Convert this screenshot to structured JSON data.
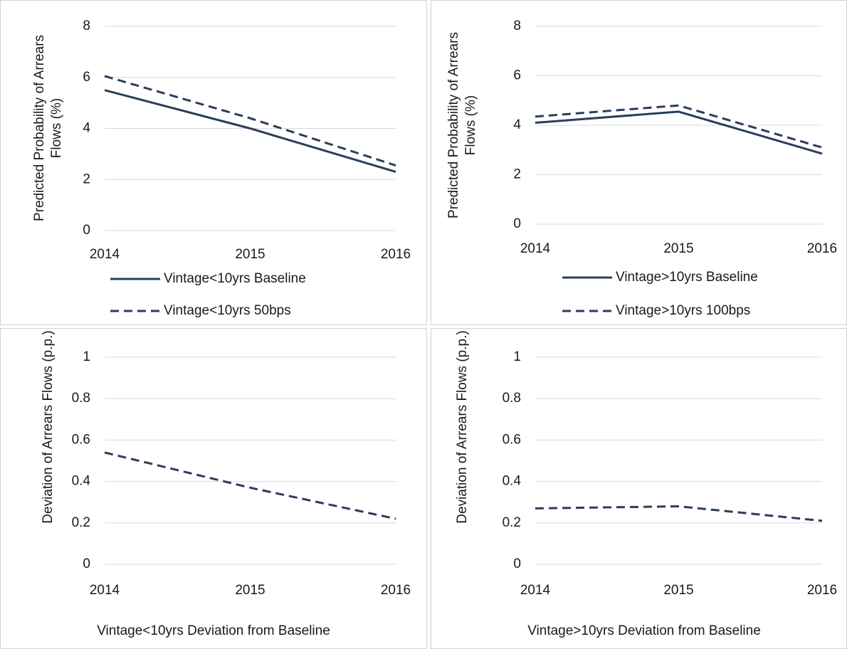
{
  "chart_data": [
    {
      "type": "line",
      "y_label": "Predicted Probability of Arrears Flows (%)",
      "categories": [
        "2014",
        "2015",
        "2016"
      ],
      "ylim": [
        0,
        8
      ],
      "yticks": [
        0,
        2,
        4,
        6,
        8
      ],
      "grid": true,
      "series": [
        {
          "name": "Vintage<10yrs Baseline",
          "color": "#2b3d5c",
          "dashed": false,
          "values": [
            5.5,
            4.0,
            2.3
          ]
        },
        {
          "name": "Vintage<10yrs 50bps",
          "color": "#2b3d5c",
          "dashed": true,
          "values": [
            6.05,
            4.4,
            2.55
          ]
        }
      ]
    },
    {
      "type": "line",
      "y_label": "Predicted Probability of Arrears Flows (%)",
      "categories": [
        "2014",
        "2015",
        "2016"
      ],
      "ylim": [
        0,
        8
      ],
      "yticks": [
        0,
        2,
        4,
        6,
        8
      ],
      "grid": true,
      "series": [
        {
          "name": "Vintage>10yrs Baseline",
          "color": "#2b3d5c",
          "dashed": false,
          "values": [
            4.1,
            4.55,
            2.85
          ]
        },
        {
          "name": "Vintage>10yrs 100bps",
          "color": "#2b3d5c",
          "dashed": true,
          "values": [
            4.35,
            4.8,
            3.1
          ]
        }
      ]
    },
    {
      "type": "line",
      "y_label": "Deviation of Arrears Flows (p.p.)",
      "categories": [
        "2014",
        "2015",
        "2016"
      ],
      "ylim": [
        0,
        1
      ],
      "yticks": [
        0,
        0.2,
        0.4,
        0.6,
        0.8,
        1
      ],
      "grid": true,
      "series": [
        {
          "name": "Vintage<10yrs Deviation from Baseline",
          "color": "#2b3d5c",
          "dashed": true,
          "values": [
            0.54,
            0.37,
            0.22
          ]
        }
      ]
    },
    {
      "type": "line",
      "y_label": "Deviation of Arrears Flows (p.p.)",
      "categories": [
        "2014",
        "2015",
        "2016"
      ],
      "ylim": [
        0,
        1
      ],
      "yticks": [
        0,
        0.2,
        0.4,
        0.6,
        0.8,
        1
      ],
      "grid": true,
      "series": [
        {
          "name": "Vintage>10yrs Deviation from Baseline",
          "color": "#2b3d5c",
          "dashed": true,
          "values": [
            0.27,
            0.28,
            0.21
          ]
        }
      ]
    }
  ]
}
